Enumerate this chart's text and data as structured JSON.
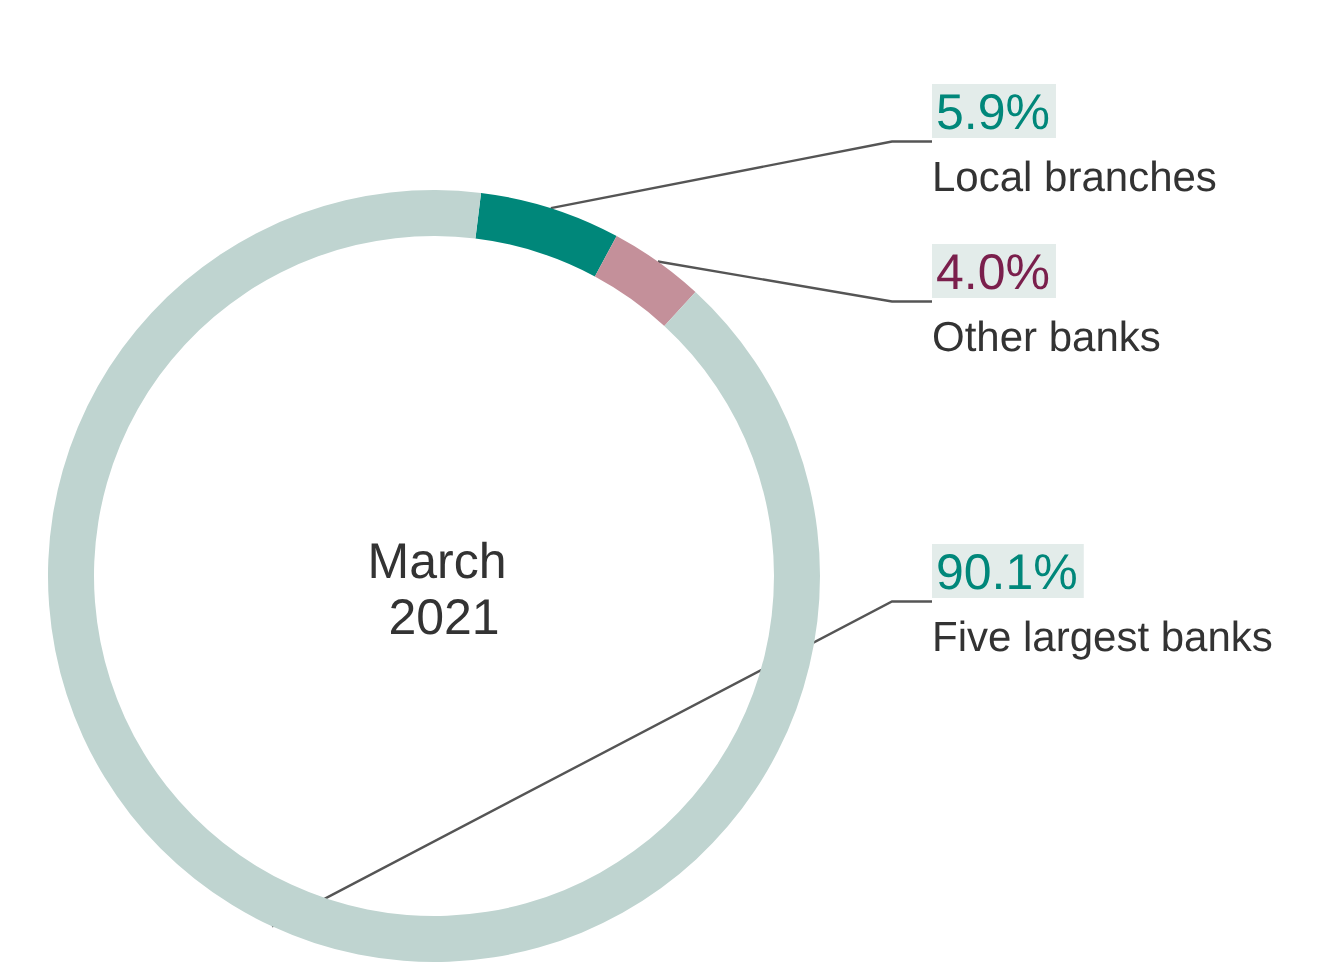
{
  "chart_data": {
    "type": "donut",
    "title": "March 2021",
    "categories": [
      "Local branches",
      "Other banks",
      "Five largest banks"
    ],
    "values": [
      5.9,
      4.0,
      90.1
    ],
    "colors": [
      "#00877a",
      "#c4909a",
      "#bfd4d0"
    ],
    "value_labels": [
      "5.9%",
      "4.0%",
      "90.1%"
    ],
    "legend": false
  }
}
